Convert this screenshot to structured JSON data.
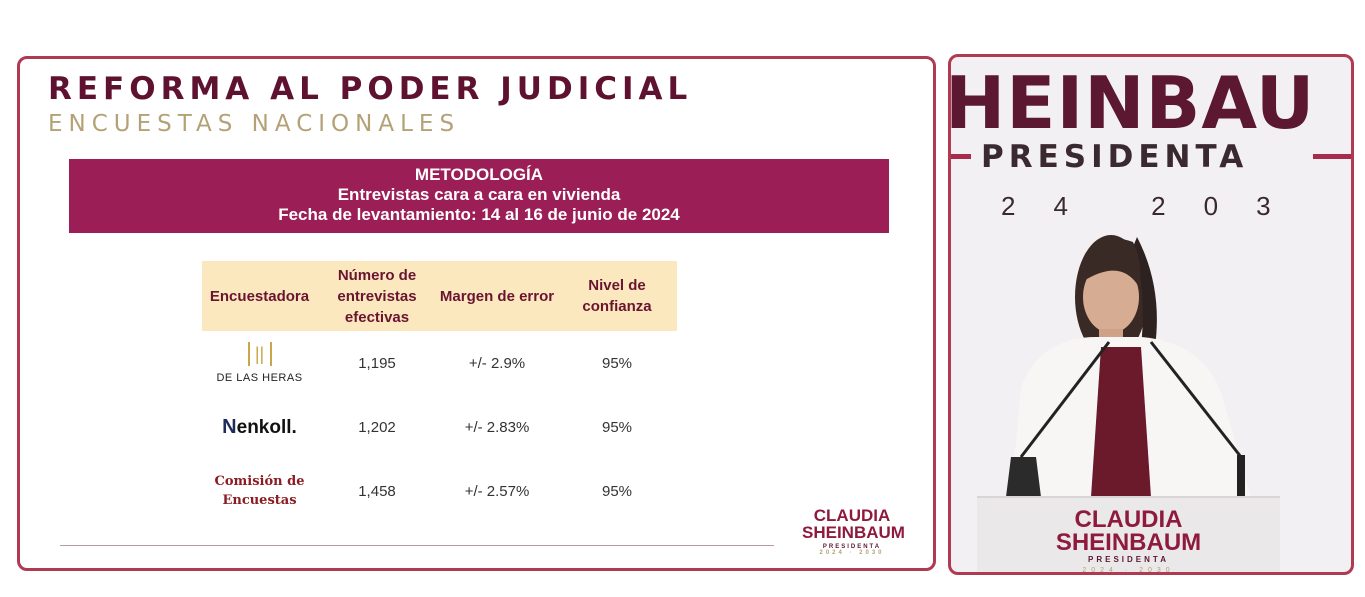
{
  "slide": {
    "title": "REFORMA AL PODER JUDICIAL",
    "subtitle": "ENCUESTAS NACIONALES",
    "banner": {
      "line1": "METODOLOGÍA",
      "line2": "Entrevistas cara a cara en vivienda",
      "line3": "Fecha de levantamiento: 14 al 16 de junio de 2024"
    },
    "table": {
      "headers": [
        "Encuestadora",
        "Número de entrevistas efectivas",
        "Margen de error",
        "Nivel de confianza"
      ],
      "rows": [
        {
          "pollster": "DE LAS HERAS",
          "interviews": "1,195",
          "margin": "+/- 2.9%",
          "confidence": "95%"
        },
        {
          "pollster": "enkoll.",
          "interviews": "1,202",
          "margin": "+/- 2.83%",
          "confidence": "95%"
        },
        {
          "pollster_line1": "Comisión de",
          "pollster_line2": "Encuestas",
          "interviews": "1,458",
          "margin": "+/- 2.57%",
          "confidence": "95%"
        }
      ]
    },
    "logo": {
      "name1": "CLAUDIA",
      "name2": "SHEINBAUM",
      "role": "PRESIDENTA",
      "years": "2024 · 2030"
    }
  },
  "video": {
    "backdrop_name": "HEINBAU",
    "backdrop_role": "PRESIDENTA",
    "backdrop_years": "24 203",
    "podium": {
      "name1": "CLAUDIA",
      "name2": "SHEINBAUM",
      "role": "PRESIDENTA",
      "years": "2024 · 2030"
    }
  },
  "colors": {
    "brand_maroon": "#9b1e56",
    "title_maroon": "#5e1230",
    "gold": "#b4a277",
    "header_cream": "#fbe8bf",
    "frame_border": "#b03a52"
  }
}
